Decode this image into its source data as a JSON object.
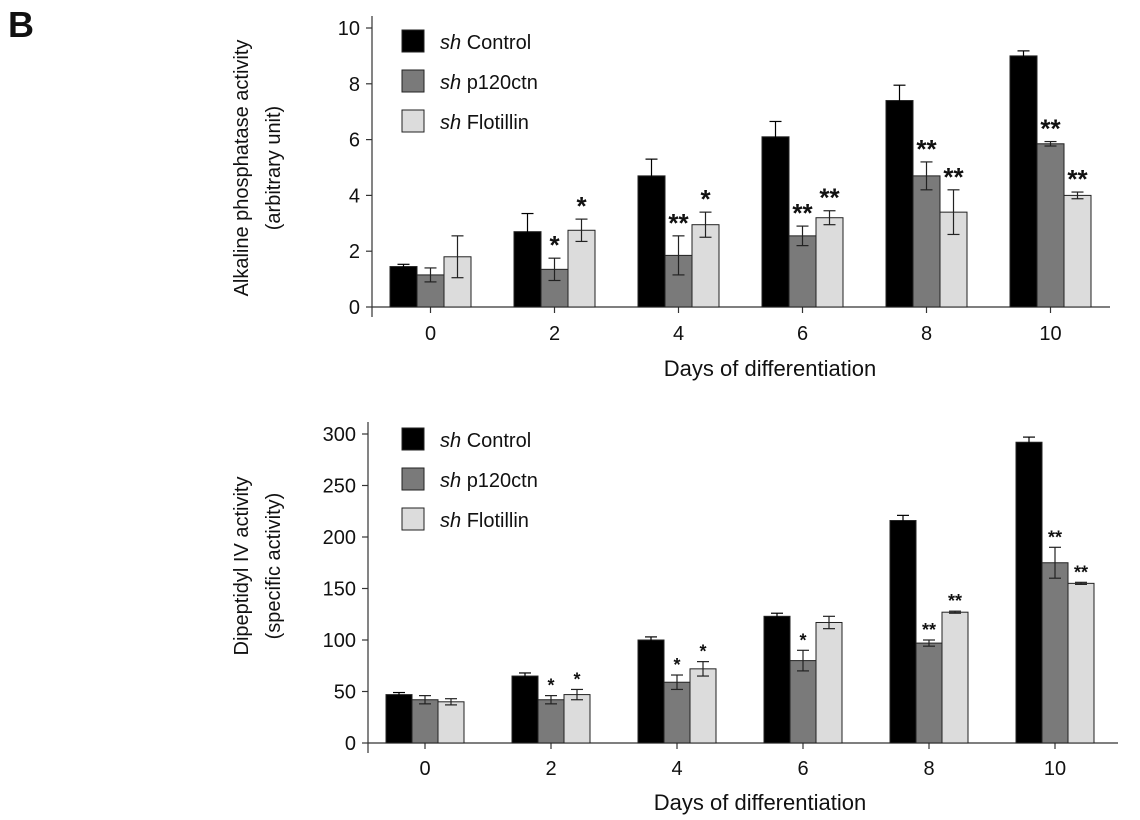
{
  "panel_label": "B",
  "colors": {
    "control": "#000000",
    "p120ctn": "#7a7a7a",
    "flotillin": "#dcdcdc"
  },
  "chart_data": [
    {
      "type": "bar",
      "title": "",
      "xlabel": "Days of differentiation",
      "ylabel": [
        "Alkaline phosphatase activity",
        "(arbitrary unit)"
      ],
      "categories": [
        "0",
        "2",
        "4",
        "6",
        "8",
        "10"
      ],
      "ylim": [
        0,
        10
      ],
      "yticks": [
        "0",
        "2",
        "4",
        "6",
        "8",
        "10"
      ],
      "grid": false,
      "legend_position": "top-left",
      "series": [
        {
          "prefix": "sh",
          "name": "Control",
          "color": "#000000",
          "values": [
            1.45,
            2.7,
            4.7,
            6.1,
            7.4,
            9.0
          ],
          "errors": [
            0.08,
            0.65,
            0.6,
            0.55,
            0.55,
            0.18
          ],
          "significance": [
            "",
            "",
            "",
            "",
            "",
            ""
          ]
        },
        {
          "prefix": "sh",
          "name": "p120ctn",
          "color": "#7a7a7a",
          "values": [
            1.15,
            1.35,
            1.85,
            2.55,
            4.7,
            5.85
          ],
          "errors": [
            0.25,
            0.4,
            0.7,
            0.35,
            0.5,
            0.08
          ],
          "significance": [
            "",
            "*",
            "**",
            "**",
            "**",
            "**"
          ]
        },
        {
          "prefix": "sh",
          "name": "Flotillin",
          "color": "#dcdcdc",
          "values": [
            1.8,
            2.75,
            2.95,
            3.2,
            3.4,
            4.0
          ],
          "errors": [
            0.75,
            0.4,
            0.45,
            0.25,
            0.8,
            0.12
          ],
          "significance": [
            "",
            "*",
            "*",
            "**",
            "**",
            "**"
          ]
        }
      ]
    },
    {
      "type": "bar",
      "title": "",
      "xlabel": "Days of differentiation",
      "ylabel": [
        "Dipeptidyl  IV activity",
        "(specific activity)"
      ],
      "categories": [
        "0",
        "2",
        "4",
        "6",
        "8",
        "10"
      ],
      "ylim": [
        0,
        300
      ],
      "yticks": [
        "0",
        "50",
        "100",
        "150",
        "200",
        "250",
        "300"
      ],
      "grid": false,
      "legend_position": "top-left",
      "series": [
        {
          "prefix": "sh",
          "name": "Control",
          "color": "#000000",
          "values": [
            47,
            65,
            100,
            123,
            216,
            292
          ],
          "errors": [
            2,
            3,
            3,
            3,
            5,
            5
          ],
          "significance": [
            "",
            "",
            "",
            "",
            "",
            ""
          ]
        },
        {
          "prefix": "sh",
          "name": "p120ctn",
          "color": "#7a7a7a",
          "values": [
            42,
            42,
            59,
            80,
            97,
            175
          ],
          "errors": [
            4,
            4,
            7,
            10,
            3,
            15
          ],
          "significance": [
            "",
            "*",
            "*",
            "*",
            "**",
            "**"
          ]
        },
        {
          "prefix": "sh",
          "name": "Flotillin",
          "color": "#dcdcdc",
          "values": [
            40,
            47,
            72,
            117,
            127,
            155
          ],
          "errors": [
            3,
            5,
            7,
            6,
            1,
            1
          ],
          "significance": [
            "",
            "*",
            "*",
            "",
            "**",
            "**"
          ]
        }
      ]
    }
  ]
}
